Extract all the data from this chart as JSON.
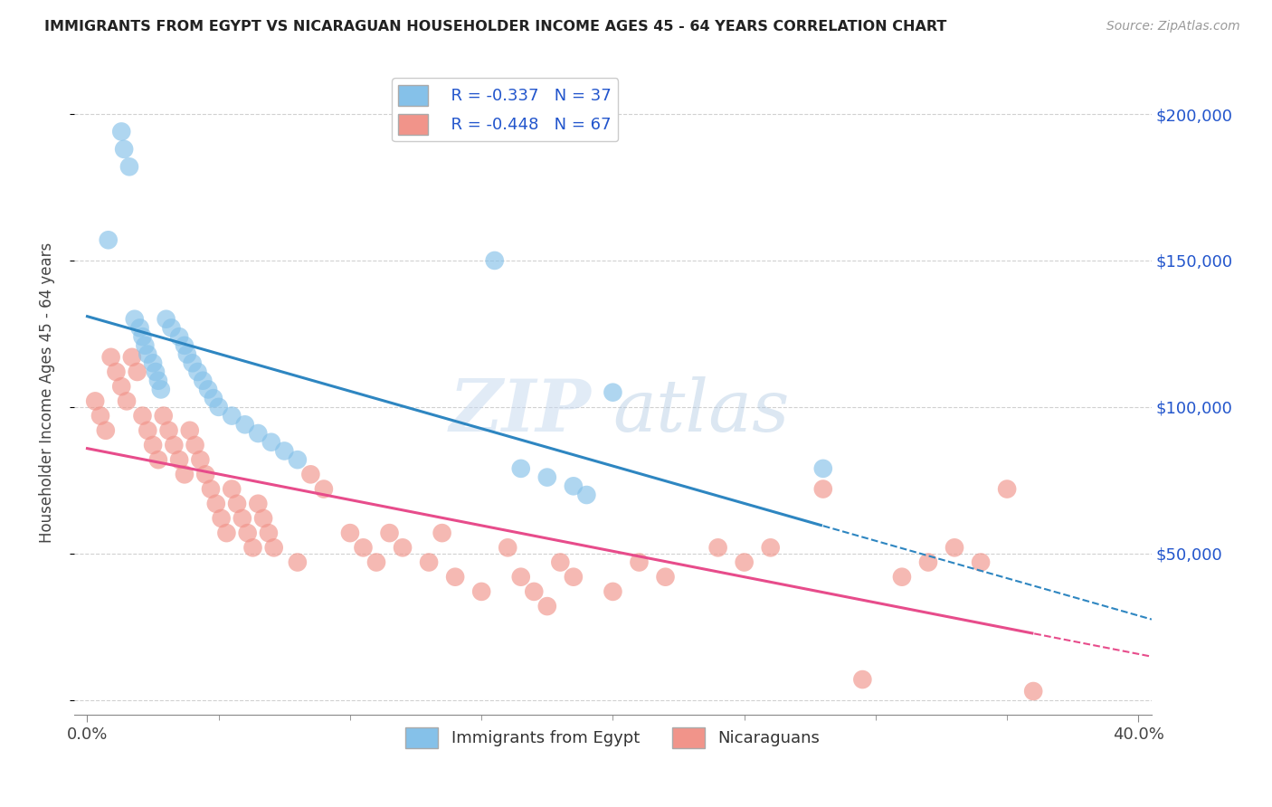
{
  "title": "IMMIGRANTS FROM EGYPT VS NICARAGUAN HOUSEHOLDER INCOME AGES 45 - 64 YEARS CORRELATION CHART",
  "source": "Source: ZipAtlas.com",
  "ylabel": "Householder Income Ages 45 - 64 years",
  "xlabel_major_ticks": [
    0.0,
    0.4
  ],
  "xlabel_major_labels": [
    "0.0%",
    "40.0%"
  ],
  "xlabel_minor_ticks": [
    0.05,
    0.1,
    0.15,
    0.2,
    0.25,
    0.3,
    0.35
  ],
  "ylabel_ticks": [
    0,
    50000,
    100000,
    150000,
    200000
  ],
  "ylabel_labels": [
    "",
    "$50,000",
    "$100,000",
    "$150,000",
    "$200,000"
  ],
  "xlim": [
    -0.005,
    0.405
  ],
  "ylim": [
    -5000,
    215000
  ],
  "legend_egypt_R": "R = -0.337",
  "legend_egypt_N": "N = 37",
  "legend_nic_R": "R = -0.448",
  "legend_nic_N": "N = 67",
  "egypt_color": "#85C1E9",
  "nicaragua_color": "#F1948A",
  "egypt_line_color": "#2E86C1",
  "nicaragua_line_color": "#E74C8B",
  "watermark_zip": "ZIP",
  "watermark_atlas": "atlas",
  "egypt_x": [
    0.008,
    0.013,
    0.014,
    0.016,
    0.018,
    0.02,
    0.021,
    0.022,
    0.023,
    0.025,
    0.026,
    0.027,
    0.028,
    0.03,
    0.032,
    0.035,
    0.037,
    0.038,
    0.04,
    0.042,
    0.044,
    0.046,
    0.048,
    0.05,
    0.055,
    0.06,
    0.065,
    0.07,
    0.075,
    0.08,
    0.155,
    0.165,
    0.175,
    0.185,
    0.19,
    0.2,
    0.28
  ],
  "egypt_y": [
    157000,
    194000,
    188000,
    182000,
    130000,
    127000,
    124000,
    121000,
    118000,
    115000,
    112000,
    109000,
    106000,
    130000,
    127000,
    124000,
    121000,
    118000,
    115000,
    112000,
    109000,
    106000,
    103000,
    100000,
    97000,
    94000,
    91000,
    88000,
    85000,
    82000,
    150000,
    79000,
    76000,
    73000,
    70000,
    105000,
    79000
  ],
  "nic_x": [
    0.003,
    0.005,
    0.007,
    0.009,
    0.011,
    0.013,
    0.015,
    0.017,
    0.019,
    0.021,
    0.023,
    0.025,
    0.027,
    0.029,
    0.031,
    0.033,
    0.035,
    0.037,
    0.039,
    0.041,
    0.043,
    0.045,
    0.047,
    0.049,
    0.051,
    0.053,
    0.055,
    0.057,
    0.059,
    0.061,
    0.063,
    0.065,
    0.067,
    0.069,
    0.071,
    0.08,
    0.085,
    0.09,
    0.1,
    0.105,
    0.11,
    0.115,
    0.12,
    0.13,
    0.135,
    0.14,
    0.15,
    0.16,
    0.165,
    0.17,
    0.175,
    0.18,
    0.185,
    0.2,
    0.21,
    0.22,
    0.24,
    0.25,
    0.26,
    0.28,
    0.295,
    0.31,
    0.32,
    0.33,
    0.34,
    0.35,
    0.36
  ],
  "nic_y": [
    102000,
    97000,
    92000,
    117000,
    112000,
    107000,
    102000,
    117000,
    112000,
    97000,
    92000,
    87000,
    82000,
    97000,
    92000,
    87000,
    82000,
    77000,
    92000,
    87000,
    82000,
    77000,
    72000,
    67000,
    62000,
    57000,
    72000,
    67000,
    62000,
    57000,
    52000,
    67000,
    62000,
    57000,
    52000,
    47000,
    77000,
    72000,
    57000,
    52000,
    47000,
    57000,
    52000,
    47000,
    57000,
    42000,
    37000,
    52000,
    42000,
    37000,
    32000,
    47000,
    42000,
    37000,
    47000,
    42000,
    52000,
    47000,
    52000,
    72000,
    7000,
    42000,
    47000,
    52000,
    47000,
    72000,
    3000
  ]
}
